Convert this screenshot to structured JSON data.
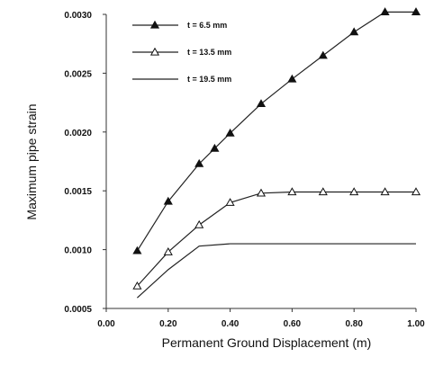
{
  "chart_data": {
    "type": "line",
    "xlabel": "Permanent Ground Displacement (m)",
    "ylabel": "Maximum pipe strain",
    "xlim": [
      0.0,
      1.0
    ],
    "ylim": [
      0.0005,
      0.003
    ],
    "xticks": [
      "0.00",
      "0.20",
      "0.40",
      "0.60",
      "0.80",
      "1.00"
    ],
    "xtick_values": [
      0.0,
      0.2,
      0.4,
      0.6,
      0.8,
      1.0
    ],
    "yticks": [
      "0.0005",
      "0.0010",
      "0.0015",
      "0.0020",
      "0.0025",
      "0.0030"
    ],
    "ytick_values": [
      0.0005,
      0.001,
      0.0015,
      0.002,
      0.0025,
      0.003
    ],
    "grid": false,
    "legend_position": "top-left",
    "series": [
      {
        "name": "t = 6.5 mm",
        "marker": "filled-triangle",
        "x": [
          0.1,
          0.2,
          0.3,
          0.35,
          0.4,
          0.5,
          0.6,
          0.7,
          0.8,
          0.9,
          1.0
        ],
        "y": [
          0.00099,
          0.00141,
          0.00173,
          0.00186,
          0.00199,
          0.00224,
          0.00245,
          0.00265,
          0.00285,
          0.00302,
          0.00302
        ]
      },
      {
        "name": "t = 13.5 mm",
        "marker": "open-triangle",
        "x": [
          0.1,
          0.2,
          0.3,
          0.4,
          0.5,
          0.6,
          0.7,
          0.8,
          0.9,
          1.0
        ],
        "y": [
          0.00069,
          0.00098,
          0.00121,
          0.0014,
          0.00148,
          0.00149,
          0.00149,
          0.00149,
          0.00149,
          0.00149
        ]
      },
      {
        "name": "t = 19.5 mm",
        "marker": "none",
        "x": [
          0.1,
          0.2,
          0.3,
          0.4,
          0.5,
          0.6,
          0.7,
          0.8,
          0.9,
          1.0
        ],
        "y": [
          0.00059,
          0.00083,
          0.00103,
          0.00105,
          0.00105,
          0.00105,
          0.00105,
          0.00105,
          0.00105,
          0.00105
        ]
      }
    ]
  }
}
